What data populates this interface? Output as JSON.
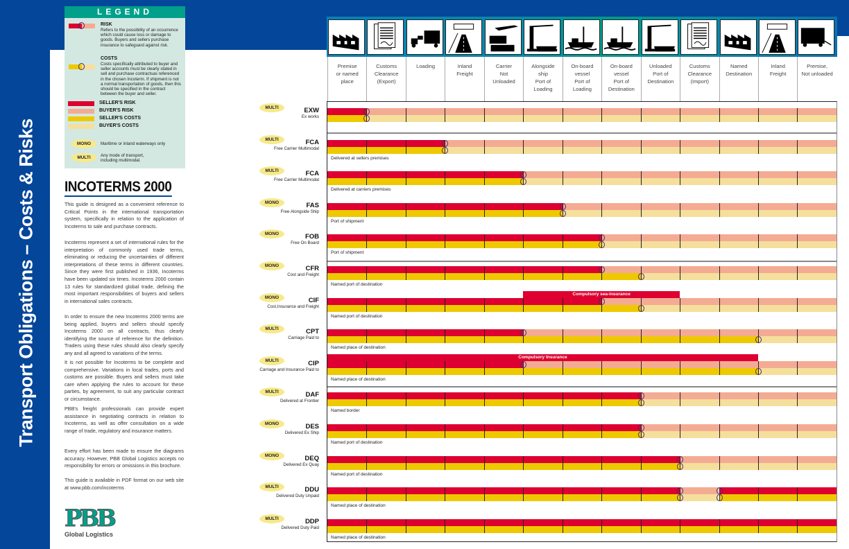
{
  "side_title": "Transport Obligations – Costs & Risks",
  "legend": {
    "title": "LEGEND",
    "risk_title": "RISK",
    "risk_text": "Refers to the possibility of an occurrence which could cause loss or damage to goods. Buyers and sellers purchase insurance to safeguard against risk.",
    "costs_title": "COSTS",
    "costs_text": "Costs specifically attributed to buyer and seller accounts must be clearly stated in sell and purchase contractsas referenced in the chosen Incoterm. If shipment is not a normal transportation of goods, then this should be specified in the contract between the buyer and seller.",
    "swatches": [
      {
        "label": "SELLER'S RISK",
        "color": "#dd0030"
      },
      {
        "label": "BUYER'S RISK",
        "color": "#f4ab93"
      },
      {
        "label": "SELLER'S COSTS",
        "color": "#eec900"
      },
      {
        "label": "BUYER'S COSTS",
        "color": "#f5df9c"
      }
    ],
    "mono_label": "MONO",
    "mono_text": "Maritime or inland waterways only",
    "multi_label": "MULTI",
    "multi_text": "Any mode of transport, including multimodal."
  },
  "intro": {
    "title": "INCOTERMS 2000",
    "paragraphs": [
      "This guide is designed as a convenient reference to Critical Points in the international transportation system, specifically in relation to the application of Incoterms to sale and purchase contracts.",
      "Incoterms represent a set of international rules for the interpretation of commonly used trade terms, eliminating or reducing the uncertainties of different interpretations of these terms in different countries. Since they were first published in 1936, Incoterms have been updated six times. Incoterms 2000 contain 13 rules for standardized global trade, defining the most important responsibilities of buyers and sellers in international sales contracts.",
      "In order to ensure the new Incoterms 2000 terms are being applied, buyers and sellers should specify Incoterms 2000 on all contracts, thus clearly identifying the source of reference for the definition. Traders using these rules should also clearly specify any and all agreed to variations of the terms.",
      "It is not possible for Incoterms to be complete and comprehensive. Variations in local trades, ports and customs are possible. Buyers and sellers must take care when applying the rules to account for these parties, by agreement, to suit any particular contract or circumstance.",
      "PBB's freight professionals can provide expert assistance in negotiating contracts in relation to Incoterms, as well as offer consultation on a wide range of trade, regulatory and insurance matters.",
      "Every effort has been made to ensure the diagrams accuracy. However, PBB Global Logistics accepts no responsibility for errors or omissions in this brochure.",
      "This guide is available in PDF format on our web site at www.pbb.com/incoterms"
    ],
    "logo": "PBB",
    "logo_sub": "Global Logistics"
  },
  "colors": {
    "seller_risk": "#dd0030",
    "buyer_risk": "#f4ab93",
    "seller_cost": "#eec900",
    "buyer_cost": "#f5df9c"
  },
  "columns": [
    {
      "label": "Premise\nor named\nplace",
      "icon": "factory-icon"
    },
    {
      "label": "Customs\nClearance\n(Export)",
      "icon": "document-icon"
    },
    {
      "label": "Loading",
      "icon": "truck-loading-icon"
    },
    {
      "label": "Inland\nFreight",
      "icon": "road-icon"
    },
    {
      "label": "Carrier\nNot\nUnloaded",
      "icon": "plane-truck-icon"
    },
    {
      "label": "Alongside\nship\nPort of\nLoading",
      "icon": "crane-ship-icon"
    },
    {
      "label": "On-board\nvessel\nPort of\nLoading",
      "icon": "ship-icon"
    },
    {
      "label": "On-board\nvessel\nPort of\nDestination",
      "icon": "ship-icon"
    },
    {
      "label": "Unloaded\nPort of\nDestination",
      "icon": "crane-ship-icon"
    },
    {
      "label": "Customs\nClearance\n(Import)",
      "icon": "document-icon"
    },
    {
      "label": "Named\nDestination",
      "icon": "factory-icon"
    },
    {
      "label": "Inland\nFreight",
      "icon": "road-icon"
    },
    {
      "label": "Premise,\nNot unloaded",
      "icon": "trailer-icon"
    }
  ],
  "terms": [
    {
      "mode": "MULTI",
      "code": "EXW",
      "name": "Ex works",
      "note": "",
      "risk": [
        [
          "S",
          0,
          1
        ],
        [
          "B",
          1,
          13
        ]
      ],
      "cost": [
        [
          "S",
          0,
          1
        ],
        [
          "B",
          1,
          13
        ]
      ],
      "risk_points": [
        1
      ],
      "cost_points": [
        1
      ]
    },
    {
      "mode": "MULTI",
      "code": "FCA",
      "name": "Free Carrier Multimodal",
      "note": "Delivered at sellers premises",
      "risk": [
        [
          "S",
          0,
          3
        ],
        [
          "B",
          3,
          13
        ]
      ],
      "cost": [
        [
          "S",
          0,
          3
        ],
        [
          "B",
          3,
          13
        ]
      ],
      "risk_points": [
        3
      ],
      "cost_points": [
        3
      ]
    },
    {
      "mode": "MULTI",
      "code": "FCA",
      "name": "Free Carrier Multimodal",
      "note": "Delivered at carriers premises",
      "risk": [
        [
          "S",
          0,
          5
        ],
        [
          "B",
          5,
          13
        ]
      ],
      "cost": [
        [
          "S",
          0,
          5
        ],
        [
          "B",
          5,
          13
        ]
      ],
      "risk_points": [
        5
      ],
      "cost_points": [
        5
      ]
    },
    {
      "mode": "MONO",
      "code": "FAS",
      "name": "Free Alongside Ship",
      "note": "Port of shipment",
      "risk": [
        [
          "S",
          0,
          6
        ],
        [
          "B",
          6,
          13
        ]
      ],
      "cost": [
        [
          "S",
          0,
          6
        ],
        [
          "B",
          6,
          13
        ]
      ],
      "risk_points": [
        6
      ],
      "cost_points": [
        6
      ]
    },
    {
      "mode": "MONO",
      "code": "FOB",
      "name": "Free On Board",
      "note": "Port of shipment",
      "risk": [
        [
          "S",
          0,
          7
        ],
        [
          "B",
          7,
          13
        ]
      ],
      "cost": [
        [
          "S",
          0,
          7
        ],
        [
          "B",
          7,
          13
        ]
      ],
      "risk_points": [
        7
      ],
      "cost_points": [
        7
      ]
    },
    {
      "mode": "MONO",
      "code": "CFR",
      "name": "Cost and Freight",
      "note": "Named port of destination",
      "risk": [
        [
          "S",
          0,
          7
        ],
        [
          "B",
          7,
          13
        ]
      ],
      "cost": [
        [
          "S",
          0,
          8
        ],
        [
          "B",
          8,
          13
        ]
      ],
      "risk_points": [
        7
      ],
      "cost_points": [
        8
      ]
    },
    {
      "mode": "MONO",
      "code": "CIF",
      "name": "Cost,Insurance and Freight",
      "note": "Named port of destination",
      "risk": [
        [
          "S",
          0,
          7
        ],
        [
          "B",
          7,
          13
        ]
      ],
      "cost": [
        [
          "S",
          0,
          8
        ],
        [
          "B",
          8,
          13
        ]
      ],
      "risk_points": [
        7
      ],
      "cost_points": [
        8
      ],
      "insurance": {
        "label": "Compulsory sea-insurance",
        "from": 5,
        "to": 9
      }
    },
    {
      "mode": "MULTI",
      "code": "CPT",
      "name": "Carriage Paid to",
      "note": "Named place of destination",
      "risk": [
        [
          "S",
          0,
          5
        ],
        [
          "B",
          5,
          13
        ]
      ],
      "cost": [
        [
          "S",
          0,
          11
        ],
        [
          "B",
          11,
          13
        ]
      ],
      "risk_points": [
        5
      ],
      "cost_points": [
        11
      ]
    },
    {
      "mode": "MULTI",
      "code": "CIP",
      "name": "Carriage and Insurance Paid to",
      "note": "Named place of destination",
      "risk": [
        [
          "S",
          0,
          5
        ],
        [
          "B",
          5,
          13
        ]
      ],
      "cost": [
        [
          "S",
          0,
          11
        ],
        [
          "B",
          11,
          13
        ]
      ],
      "risk_points": [
        5
      ],
      "cost_points": [
        11
      ],
      "insurance": {
        "label": "Compulsory Insurance",
        "from": 0,
        "to": 11
      }
    },
    {
      "mode": "MULTI",
      "code": "DAF",
      "name": "Delivered at Frontier",
      "note": "Named border",
      "risk": [
        [
          "S",
          0,
          8
        ],
        [
          "B",
          8,
          13
        ]
      ],
      "cost": [
        [
          "S",
          0,
          8
        ],
        [
          "B",
          8,
          13
        ]
      ],
      "risk_points": [
        8
      ],
      "cost_points": [
        8
      ]
    },
    {
      "mode": "MONO",
      "code": "DES",
      "name": "Delivered Ex Ship",
      "note": "Named port of destination",
      "risk": [
        [
          "S",
          0,
          8
        ],
        [
          "B",
          8,
          13
        ]
      ],
      "cost": [
        [
          "S",
          0,
          8
        ],
        [
          "B",
          8,
          13
        ]
      ],
      "risk_points": [
        8
      ],
      "cost_points": [
        8
      ]
    },
    {
      "mode": "MONO",
      "code": "DEQ",
      "name": "Delivered Ex Quay",
      "note": "Named port of destination",
      "risk": [
        [
          "S",
          0,
          9
        ],
        [
          "B",
          9,
          13
        ]
      ],
      "cost": [
        [
          "S",
          0,
          9
        ],
        [
          "B",
          9,
          13
        ]
      ],
      "risk_points": [
        9
      ],
      "cost_points": [
        9
      ]
    },
    {
      "mode": "MULTI",
      "code": "DDU",
      "name": "Delivered Duty Unpaid",
      "note": "Named place of destination",
      "risk": [
        [
          "S",
          0,
          9
        ],
        [
          "B",
          9,
          10
        ],
        [
          "S",
          10,
          13
        ]
      ],
      "cost": [
        [
          "S",
          0,
          9
        ],
        [
          "B",
          9,
          10
        ],
        [
          "S",
          10,
          13
        ]
      ],
      "risk_points": [
        9,
        10
      ],
      "cost_points": [
        9,
        10
      ]
    },
    {
      "mode": "MULTI",
      "code": "DDP",
      "name": "Delivered Duty Paid",
      "note": "Named place of destination",
      "risk": [
        [
          "S",
          0,
          13
        ]
      ],
      "cost": [
        [
          "S",
          0,
          13
        ]
      ],
      "risk_points": [],
      "cost_points": []
    }
  ]
}
